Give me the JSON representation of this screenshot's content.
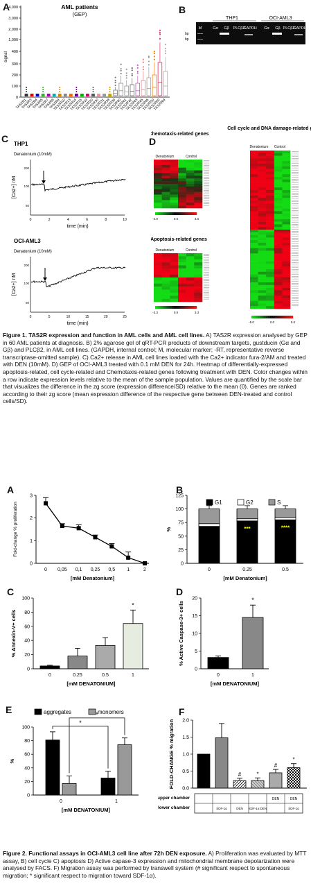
{
  "figure1": {
    "panelA": {
      "label": "A",
      "title": "AML patients",
      "subtitle": "(GEP)",
      "ylabel": "signal",
      "yticks": [
        "4,000",
        "3,000",
        "2,000",
        "1,000",
        "400",
        "300",
        "200",
        "100",
        "0"
      ],
      "genes": [
        "TAS2R1",
        "TAS2R3",
        "TAS2R4",
        "TAS2R5",
        "TAS2R7",
        "TAS2R8",
        "TAS2R9",
        "TAS2R10",
        "TAS2R13",
        "TAS2R14",
        "TAS2R16",
        "TAS2R19",
        "TAS2R20",
        "TAS2R30",
        "TAS2R31",
        "TAS2R38",
        "TAS2R39",
        "TAS2R40",
        "TAS2R41",
        "TAS2R42",
        "TAS2R43",
        "TAS2R45",
        "TAS2R46",
        "TAS2R50",
        "TAS2R60",
        "TAS2R64"
      ]
    },
    "panelB": {
      "label": "B",
      "groups": [
        "THP1",
        "OCI-AML3"
      ],
      "lanes_left": [
        "M",
        "Gα",
        "Gβ",
        "PLCβ2",
        "GAPDH"
      ],
      "lanes_right": [
        "Gα",
        "Gβ",
        "PLCβ2",
        "GAPDH"
      ],
      "ladder": [
        "bp",
        "bp"
      ]
    },
    "panelC": {
      "label": "C",
      "traces": [
        {
          "cell": "THP1",
          "treatment": "Denatonium (10mM)",
          "ylabel": "[Ca2+] nM",
          "xlabel": "time (min)",
          "xticks": [
            "0",
            "2",
            "4",
            "6",
            "8",
            "10"
          ],
          "yticks": [
            "200",
            "100",
            "50"
          ]
        },
        {
          "cell": "OCI-AML3",
          "treatment": "Denatonium (10mM)",
          "ylabel": "[Ca2+] nM",
          "xlabel": "time (min)",
          "xticks": [
            "0",
            "5",
            "10",
            "15",
            "20",
            "25"
          ],
          "yticks": [
            "200",
            "100",
            "50"
          ]
        }
      ]
    },
    "panelD": {
      "label": "D",
      "chemotaxis_title": "Chemotaxis-related genes",
      "apoptosis_title": "Apoptosis-related genes",
      "cellcycle_title": "Cell cycle and DNA damage-related genes",
      "col_denatonium": "Denatonium",
      "col_control": "Control",
      "scale1": [
        "-4.0",
        "0.0",
        "4.0"
      ],
      "scale2": [
        "-3.3",
        "0.0",
        "3.3"
      ],
      "scale3": [
        "-5.0",
        "0.0",
        "5.0"
      ]
    },
    "caption_title": "Figure 1. TAS2R expression and function in AML cells and AML cell lines.",
    "caption_text": " A) TAS2R expression analysed by GEP in 60 AML patients at diagnosis. B) 2% agarose gel of qRT-PCR products of downstream targets, gustducin (Gα and Gβ) and PLCβ2, in AML cell lines. (GAPDH, internal control; M, molecular marker; -RT, representative reverse transcriptase-omitted sample). C) Ca2+ release in AML cell lines loaded with the Ca2+ indicator fura-2/AM and treated with DEN (10mM). D) GEP of OCI-AML3 treated with 0.1 mM DEN for 24h. Heatmap of differentially-expressed apoptosis-related, cell cycle-related and Chemotaxis-related genes following treatment with DEN. Color changes within a row indicate expression levels relative to the mean of the sample population. Values are quantified by the scale bar that visualizes the difference in the zg score (expression difference/SD) relative to the mean (0). Genes are ranked according to their zg score (mean expression difference of the respective gene between DEN-treated and control cells/SD)."
  },
  "figure2": {
    "panelA": {
      "label": "A",
      "ylabel": "Fold-change % proliferation",
      "xlabel": "[mM Denatonium]",
      "yticks": [
        "0",
        "1",
        "2",
        "3"
      ],
      "chart_data": {
        "type": "line",
        "categories": [
          "0",
          "0,05",
          "0,1",
          "0,25",
          "0,5",
          "1",
          "2"
        ],
        "values": [
          2.65,
          1.65,
          1.55,
          1.15,
          0.75,
          0.25,
          0.0
        ],
        "errors": [
          0.25,
          0.1,
          0.15,
          0.1,
          0.12,
          0.25,
          0.02
        ],
        "ylim": [
          0,
          3
        ]
      }
    },
    "panelB": {
      "label": "B",
      "ylabel": "%",
      "xlabel": "[mM Denatonium]",
      "legend": [
        "G1",
        "G2",
        "S"
      ],
      "yticks": [
        "0",
        "25",
        "50",
        "75",
        "100",
        "125"
      ],
      "categories": [
        "0",
        "0.25",
        "0.5"
      ],
      "sig": [
        "",
        "***",
        "****"
      ],
      "chart_data": {
        "type": "bar",
        "categories": [
          "0",
          "0.25",
          "0.5"
        ],
        "series": [
          {
            "name": "G1",
            "values": [
              68,
              78,
              80
            ]
          },
          {
            "name": "G2",
            "values": [
              5,
              4,
              4
            ]
          },
          {
            "name": "S",
            "values": [
              27,
              18,
              16
            ]
          }
        ],
        "ylim": [
          0,
          125
        ]
      }
    },
    "panelC": {
      "label": "C",
      "ylabel": "% Annexin-V+ cells",
      "xlabel": "[mM DENATONIUM]",
      "yticks": [
        "0",
        "20",
        "40",
        "60",
        "80",
        "100"
      ],
      "categories": [
        "0",
        "0.25",
        "0.5",
        "1"
      ],
      "sig": "*",
      "chart_data": {
        "type": "bar",
        "categories": [
          "0",
          "0.25",
          "0.5",
          "1"
        ],
        "values": [
          4,
          18,
          33,
          64
        ],
        "errors": [
          1,
          11,
          11,
          19
        ],
        "ylim": [
          0,
          100
        ]
      }
    },
    "panelD": {
      "label": "D",
      "ylabel": "% Active Caspase-3+ cells",
      "xlabel": "[mM DENATONIUM]",
      "yticks": [
        "0",
        "5",
        "10",
        "15",
        "20"
      ],
      "categories": [
        "0",
        "1"
      ],
      "sig": "*",
      "chart_data": {
        "type": "bar",
        "categories": [
          "0",
          "1"
        ],
        "values": [
          3.2,
          14.5
        ],
        "errors": [
          0.4,
          3.5
        ],
        "ylim": [
          0,
          20
        ]
      }
    },
    "panelE": {
      "label": "E",
      "ylabel": "%",
      "xlabel": "[mM DENATONIUM]",
      "legend": [
        "aggregates",
        "monomers"
      ],
      "yticks": [
        "0",
        "20",
        "40",
        "60",
        "80",
        "100"
      ],
      "categories": [
        "0",
        "1"
      ],
      "sig": [
        "*",
        "*"
      ],
      "chart_data": {
        "type": "bar",
        "categories": [
          "0",
          "1"
        ],
        "series": [
          {
            "name": "aggregates",
            "values": [
              81,
              25
            ],
            "errors": [
              12,
              10
            ]
          },
          {
            "name": "monomers",
            "values": [
              17,
              74
            ],
            "errors": [
              11,
              10
            ]
          }
        ],
        "ylim": [
          0,
          100
        ]
      }
    },
    "panelF": {
      "label": "F",
      "ylabel": "FOLD-CHANGE % migration",
      "yticks": [
        "0.0",
        "0.5",
        "1.0",
        "1.5",
        "2.0"
      ],
      "upper_label": "upper chamber",
      "lower_label": "lower chamber",
      "upper": [
        "",
        "",
        "",
        "",
        "DEN",
        "DEN"
      ],
      "lower": [
        "",
        "SDF-1α",
        "DEN",
        "SDF-1α DEN",
        "",
        "SDF-1α"
      ],
      "sig": [
        "",
        "",
        "#",
        "*",
        "#",
        "*"
      ],
      "chart_data": {
        "type": "bar",
        "categories": [
          "1",
          "2",
          "3",
          "4",
          "5",
          "6"
        ],
        "values": [
          1.0,
          1.48,
          0.22,
          0.22,
          0.45,
          0.6
        ],
        "errors": [
          0,
          0.42,
          0.07,
          0.08,
          0.1,
          0.12
        ],
        "ylim": [
          0,
          2
        ]
      }
    },
    "caption_title": "Figure 2. Functional assays in OCI-AML3 cell line after 72h DEN exposure.",
    "caption_text": " A) Proliferation was evaluated by MTT assay, B) cell cycle C) apoptosis D) Active capase-3 expression and mitochondrial membrane depolarization were analysed by FACS. F) Migration assay was performed by transwell system (# significant respect to spontaneous migration; * significant respect to migration toward SDF-1α)."
  }
}
